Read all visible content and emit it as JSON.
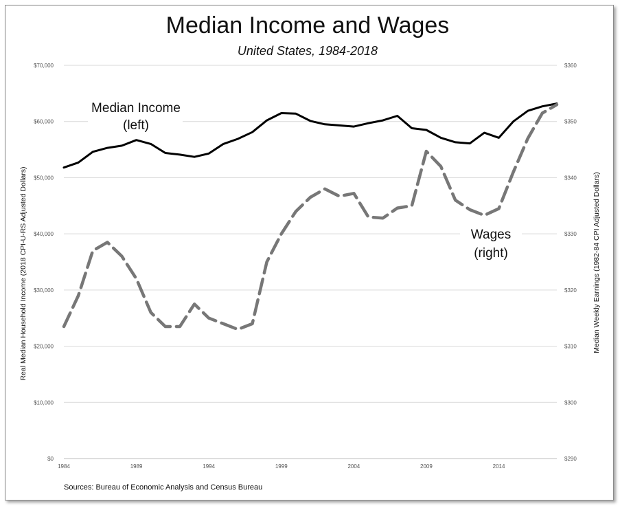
{
  "chart_data": {
    "type": "line",
    "title": "Median Income and Wages",
    "subtitle": "United States, 1984-2018",
    "source": "Sources: Bureau of Economic Analysis and Census Bureau",
    "x": [
      1984,
      1985,
      1986,
      1987,
      1988,
      1989,
      1990,
      1991,
      1992,
      1993,
      1994,
      1995,
      1996,
      1997,
      1998,
      1999,
      2000,
      2001,
      2002,
      2003,
      2004,
      2005,
      2006,
      2007,
      2008,
      2009,
      2010,
      2011,
      2012,
      2013,
      2014,
      2015,
      2016,
      2017,
      2018
    ],
    "x_tick_labels": [
      "1984",
      "1989",
      "1994",
      "1999",
      "2004",
      "2009",
      "2014"
    ],
    "x_ticks": [
      1984,
      1989,
      1994,
      1999,
      2004,
      2009,
      2014
    ],
    "xlim": [
      1984,
      2018
    ],
    "y_left": {
      "label": "Real Median Household Income (2018 CPI-U-RS Adjusted Dollars)",
      "lim": [
        0,
        70000
      ],
      "ticks": [
        0,
        10000,
        20000,
        30000,
        40000,
        50000,
        60000,
        70000
      ],
      "tick_labels": [
        "$0",
        "$10,000",
        "$20,000",
        "$30,000",
        "$40,000",
        "$50,000",
        "$60,000",
        "$70,000"
      ]
    },
    "y_right": {
      "label": "Median Weekly Earnings (1982-84 CPI Adjusted Dollars)",
      "lim": [
        290,
        360
      ],
      "ticks": [
        290,
        300,
        310,
        320,
        330,
        340,
        350,
        360
      ],
      "tick_labels": [
        "$290",
        "$300",
        "$310",
        "$320",
        "$330",
        "$340",
        "$350",
        "$360"
      ]
    },
    "series": [
      {
        "annotation": [
          "Median Income",
          "(left)"
        ],
        "axis": "left",
        "style": "solid",
        "color": "#000000",
        "values": [
          51800,
          52700,
          54600,
          55300,
          55700,
          56700,
          56000,
          54400,
          54100,
          53700,
          54300,
          56000,
          56900,
          58100,
          60200,
          61500,
          61400,
          60100,
          59500,
          59300,
          59100,
          59700,
          60200,
          61000,
          58800,
          58500,
          57100,
          56300,
          56100,
          58000,
          57100,
          60000,
          61900,
          62700,
          63200
        ]
      },
      {
        "annotation": [
          "Wages",
          "(right)"
        ],
        "axis": "right",
        "style": "dashed",
        "color": "#777777",
        "values": [
          313.5,
          319,
          327,
          328.5,
          326,
          322,
          316,
          313.5,
          313.5,
          317.5,
          315,
          314,
          313,
          314,
          325,
          330,
          334,
          336.5,
          338,
          336.7,
          337.2,
          333,
          332.8,
          334.6,
          335,
          344.7,
          342,
          336,
          334.3,
          333.3,
          334.5,
          341,
          347,
          351.5,
          353
        ]
      }
    ],
    "grid": "horizontal-left",
    "legend": "none"
  }
}
